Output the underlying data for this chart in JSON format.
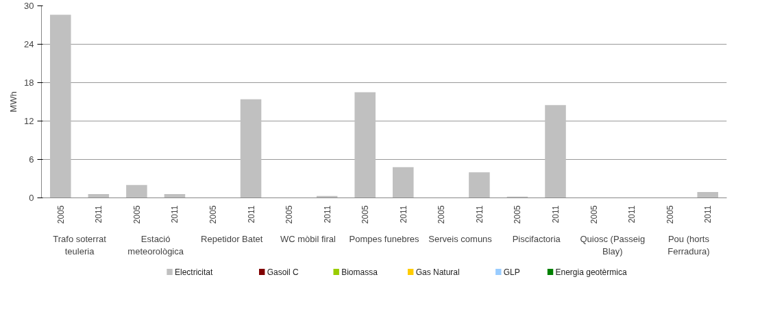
{
  "chart_data": {
    "type": "bar",
    "ylabel": "MWh",
    "categories": [
      "2005",
      "2011",
      "2005",
      "2011",
      "2005",
      "2011",
      "2005",
      "2011",
      "2005",
      "2011",
      "2005",
      "2011",
      "2005",
      "2011",
      "2005",
      "2011",
      "2005",
      "2011"
    ],
    "annotations": [
      "Trafo soterrat teuleria",
      "Estació meteorològica",
      "Repetidor Batet",
      "WC mòbil firal",
      "Pompes funebres",
      "Serveis comuns",
      "Piscifactoria",
      "Quiosc (Passeig Blay)",
      "Pou (horts Ferradura)"
    ],
    "series": [
      {
        "name": "Electricitat",
        "color": "#c0c0c0",
        "values": [
          28.6,
          0.6,
          2.0,
          0.6,
          0,
          15.4,
          0,
          0.3,
          16.5,
          4.8,
          0,
          4.0,
          0.2,
          14.5,
          0,
          0,
          0,
          0.9
        ]
      },
      {
        "name": "Gasoil C",
        "color": "#800000",
        "values": [
          0,
          0,
          0,
          0,
          0,
          0,
          0,
          0,
          0,
          0,
          0,
          0,
          0,
          0,
          0,
          0,
          0,
          0
        ]
      },
      {
        "name": "Biomassa",
        "color": "#99cc00",
        "values": [
          0,
          0,
          0,
          0,
          0,
          0,
          0,
          0,
          0,
          0,
          0,
          0,
          0,
          0,
          0,
          0,
          0,
          0
        ]
      },
      {
        "name": "Gas Natural",
        "color": "#ffcc00",
        "values": [
          0,
          0,
          0,
          0,
          0,
          0,
          0,
          0,
          0,
          0,
          0,
          0,
          0,
          0,
          0,
          0,
          0,
          0
        ]
      },
      {
        "name": "GLP",
        "color": "#99ccff",
        "values": [
          0,
          0,
          0,
          0,
          0,
          0,
          0,
          0,
          0,
          0,
          0,
          0,
          0,
          0,
          0,
          0,
          0,
          0
        ]
      },
      {
        "name": "Energia geotèrmica",
        "color": "#008000",
        "values": [
          0,
          0,
          0,
          0,
          0,
          0,
          0,
          0,
          0,
          0,
          0,
          0,
          0,
          0,
          0,
          0,
          0,
          0
        ]
      }
    ],
    "ylim": [
      0,
      30
    ],
    "yticks": [
      0,
      6,
      12,
      18,
      24,
      30
    ],
    "grid": "y",
    "legend": "bottom"
  }
}
